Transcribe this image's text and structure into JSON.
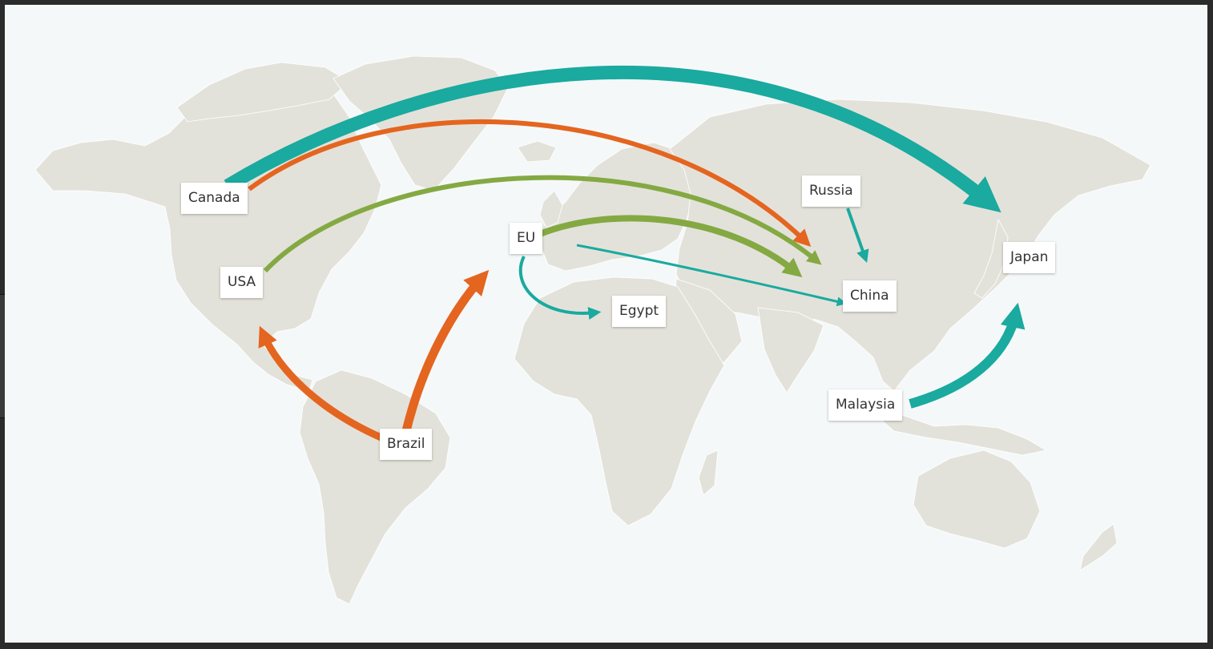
{
  "map": {
    "colors": {
      "teal": "#1aaa9f",
      "orange": "#e4651f",
      "green": "#84a943",
      "land": "#e3e2da",
      "ocean": "#f5f8f9"
    },
    "labels": {
      "canada": "Canada",
      "usa": "USA",
      "brazil": "Brazil",
      "eu": "EU",
      "egypt": "Egypt",
      "russia": "Russia",
      "china": "China",
      "japan": "Japan",
      "malaysia": "Malaysia"
    },
    "flows": [
      {
        "from": "Canada",
        "to": "Japan",
        "color": "teal",
        "weight": "heavy"
      },
      {
        "from": "Canada",
        "to": "China",
        "color": "orange",
        "weight": "light"
      },
      {
        "from": "USA",
        "to": "China",
        "color": "green",
        "weight": "medium"
      },
      {
        "from": "Brazil",
        "to": "USA",
        "color": "orange",
        "weight": "medium"
      },
      {
        "from": "Brazil",
        "to": "EU",
        "color": "orange",
        "weight": "heavy"
      },
      {
        "from": "EU",
        "to": "China",
        "color": "green",
        "weight": "medium"
      },
      {
        "from": "EU",
        "to": "China",
        "color": "teal",
        "weight": "light"
      },
      {
        "from": "EU",
        "to": "Egypt",
        "color": "teal",
        "weight": "light"
      },
      {
        "from": "Russia",
        "to": "China",
        "color": "teal",
        "weight": "light"
      },
      {
        "from": "Malaysia",
        "to": "Japan",
        "color": "teal",
        "weight": "heavy"
      }
    ]
  }
}
